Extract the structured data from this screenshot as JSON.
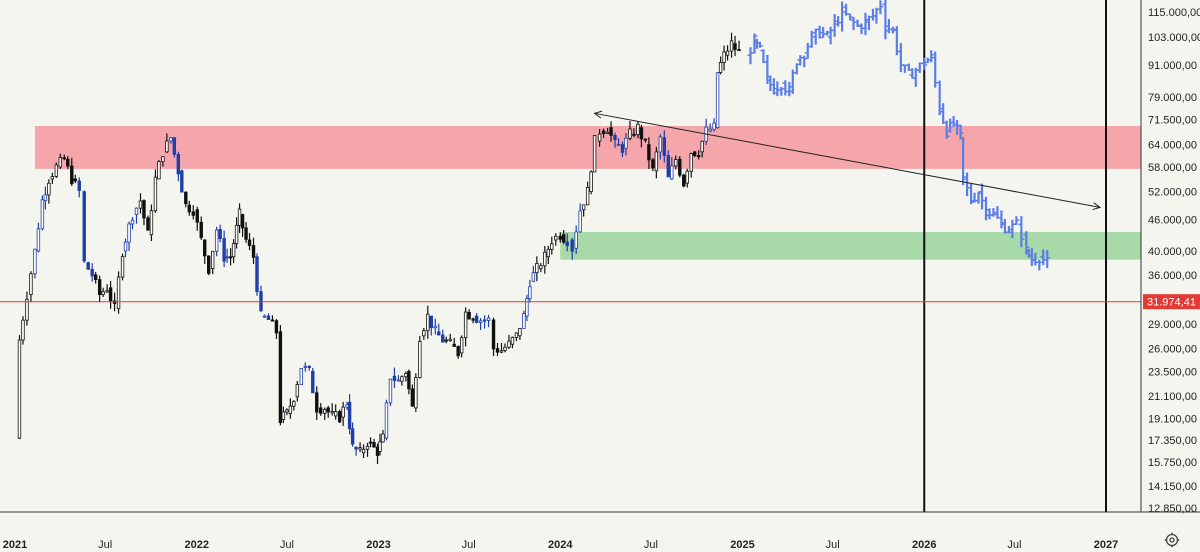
{
  "chart_data": {
    "type": "candlestick",
    "title": "",
    "y_scale": "log",
    "ylim": [
      12850,
      118000
    ],
    "y_ticks": [
      "115.000,00",
      "103.000,00",
      "91.000,00",
      "79.000,00",
      "71.500,00",
      "64.000,00",
      "58.000,00",
      "52.000,00",
      "46.000,00",
      "40.000,00",
      "36.000,00",
      "29.000,00",
      "26.000,00",
      "23.500,00",
      "21.100,00",
      "19.100,00",
      "17.350,00",
      "15.750,00",
      "14.150,00",
      "12.850,00"
    ],
    "x_ticks": [
      "2021",
      "Jul",
      "2022",
      "Jul",
      "2023",
      "Jul",
      "2024",
      "Jul",
      "2025",
      "Jul",
      "2026",
      "Jul",
      "2027"
    ],
    "x_range": [
      "2021-01-01",
      "2027-01-20"
    ],
    "price_label": {
      "value": 31974.41,
      "text": "31.974,41",
      "color": "#e53935"
    },
    "zones": [
      {
        "name": "resistance",
        "from": 57500,
        "to": 69500,
        "start": "2021-02-10",
        "color": "#f4a6aa"
      },
      {
        "name": "support",
        "from": 38500,
        "to": 43500,
        "start": "2024-01-01",
        "color": "#a8d9a8"
      }
    ],
    "trendline": {
      "start": [
        "2024-03-10",
        73500
      ],
      "end": [
        "2026-12-20",
        48500
      ]
    },
    "vertical_lines": [
      "2026-01-01",
      "2027-01-01"
    ],
    "historical_candle_color": "#111111",
    "historical_candle_alt_color": "#1e3ea8",
    "projection_color": "#5b7ee5",
    "historical_points": [
      [
        "2021-01-01",
        17500
      ],
      [
        "2021-01-10",
        27000
      ],
      [
        "2021-01-25",
        33000
      ],
      [
        "2021-02-10",
        40000
      ],
      [
        "2021-02-25",
        50000
      ],
      [
        "2021-03-10",
        55000
      ],
      [
        "2021-03-25",
        58000
      ],
      [
        "2021-04-10",
        60000
      ],
      [
        "2021-04-25",
        55000
      ],
      [
        "2021-05-10",
        52000
      ],
      [
        "2021-05-20",
        38000
      ],
      [
        "2021-06-05",
        36000
      ],
      [
        "2021-06-20",
        33000
      ],
      [
        "2021-07-05",
        34000
      ],
      [
        "2021-07-20",
        31000
      ],
      [
        "2021-08-05",
        40000
      ],
      [
        "2021-08-25",
        47000
      ],
      [
        "2021-09-10",
        50000
      ],
      [
        "2021-09-25",
        43000
      ],
      [
        "2021-10-10",
        55000
      ],
      [
        "2021-10-25",
        62000
      ],
      [
        "2021-11-10",
        66000
      ],
      [
        "2021-11-25",
        57000
      ],
      [
        "2021-12-10",
        49000
      ],
      [
        "2021-12-25",
        48000
      ],
      [
        "2022-01-10",
        42000
      ],
      [
        "2022-01-25",
        37000
      ],
      [
        "2022-02-10",
        44000
      ],
      [
        "2022-02-25",
        39000
      ],
      [
        "2022-03-10",
        39000
      ],
      [
        "2022-03-28",
        47000
      ],
      [
        "2022-04-10",
        42000
      ],
      [
        "2022-04-25",
        39000
      ],
      [
        "2022-05-10",
        30000
      ],
      [
        "2022-05-25",
        29500
      ],
      [
        "2022-06-10",
        28000
      ],
      [
        "2022-06-18",
        19000
      ],
      [
        "2022-07-01",
        19500
      ],
      [
        "2022-07-15",
        21000
      ],
      [
        "2022-07-30",
        24000
      ],
      [
        "2022-08-15",
        23500
      ],
      [
        "2022-08-30",
        20000
      ],
      [
        "2022-09-15",
        20000
      ],
      [
        "2022-09-30",
        19300
      ],
      [
        "2022-10-15",
        19200
      ],
      [
        "2022-10-30",
        20500
      ],
      [
        "2022-11-10",
        16800
      ],
      [
        "2022-11-25",
        16400
      ],
      [
        "2022-12-10",
        17200
      ],
      [
        "2022-12-30",
        16500
      ],
      [
        "2023-01-10",
        17500
      ],
      [
        "2023-01-25",
        23000
      ],
      [
        "2023-02-10",
        22500
      ],
      [
        "2023-02-25",
        23500
      ],
      [
        "2023-03-10",
        20000
      ],
      [
        "2023-03-25",
        27500
      ],
      [
        "2023-04-10",
        30000
      ],
      [
        "2023-04-25",
        28000
      ],
      [
        "2023-05-10",
        27000
      ],
      [
        "2023-05-25",
        26500
      ],
      [
        "2023-06-10",
        25500
      ],
      [
        "2023-06-25",
        30500
      ],
      [
        "2023-07-10",
        30000
      ],
      [
        "2023-07-25",
        29500
      ],
      [
        "2023-08-10",
        29500
      ],
      [
        "2023-08-20",
        26000
      ],
      [
        "2023-09-05",
        25800
      ],
      [
        "2023-09-20",
        26500
      ],
      [
        "2023-10-05",
        27500
      ],
      [
        "2023-10-20",
        30000
      ],
      [
        "2023-11-01",
        35000
      ],
      [
        "2023-11-15",
        37000
      ],
      [
        "2023-12-01",
        39000
      ],
      [
        "2023-12-15",
        42000
      ],
      [
        "2024-01-01",
        43000
      ],
      [
        "2024-01-15",
        42000
      ],
      [
        "2024-01-25",
        40500
      ],
      [
        "2024-02-10",
        48000
      ],
      [
        "2024-02-25",
        52000
      ],
      [
        "2024-03-10",
        65000
      ],
      [
        "2024-03-20",
        68000
      ],
      [
        "2024-04-05",
        69000
      ],
      [
        "2024-04-20",
        64000
      ],
      [
        "2024-05-05",
        63000
      ],
      [
        "2024-05-20",
        67000
      ],
      [
        "2024-06-05",
        69000
      ],
      [
        "2024-06-20",
        64000
      ],
      [
        "2024-07-05",
        57000
      ],
      [
        "2024-07-20",
        66000
      ],
      [
        "2024-08-05",
        55000
      ],
      [
        "2024-08-20",
        60000
      ],
      [
        "2024-09-05",
        54000
      ],
      [
        "2024-09-20",
        62000
      ],
      [
        "2024-10-05",
        62000
      ],
      [
        "2024-10-20",
        68000
      ],
      [
        "2024-11-05",
        69000
      ],
      [
        "2024-11-12",
        88000
      ],
      [
        "2024-11-25",
        95000
      ],
      [
        "2024-12-10",
        100000
      ],
      [
        "2024-12-25",
        96000
      ]
    ],
    "projection_points": [
      [
        "2025-01-10",
        95000
      ],
      [
        "2025-01-25",
        101000
      ],
      [
        "2025-02-05",
        97000
      ],
      [
        "2025-02-20",
        85000
      ],
      [
        "2025-03-05",
        82000
      ],
      [
        "2025-03-20",
        84000
      ],
      [
        "2025-04-05",
        81000
      ],
      [
        "2025-04-20",
        93000
      ],
      [
        "2025-05-05",
        96000
      ],
      [
        "2025-05-20",
        103000
      ],
      [
        "2025-06-05",
        105000
      ],
      [
        "2025-06-20",
        103000
      ],
      [
        "2025-07-05",
        109000
      ],
      [
        "2025-07-20",
        115000
      ],
      [
        "2025-08-05",
        111000
      ],
      [
        "2025-08-20",
        108000
      ],
      [
        "2025-09-05",
        110000
      ],
      [
        "2025-09-20",
        113000
      ],
      [
        "2025-10-05",
        119000
      ],
      [
        "2025-10-15",
        108000
      ],
      [
        "2025-10-30",
        106000
      ],
      [
        "2025-11-15",
        91000
      ],
      [
        "2025-12-01",
        87000
      ],
      [
        "2025-12-15",
        89000
      ],
      [
        "2026-01-01",
        92000
      ],
      [
        "2026-01-15",
        94000
      ],
      [
        "2026-02-01",
        75000
      ],
      [
        "2026-02-15",
        68000
      ],
      [
        "2026-03-01",
        70000
      ],
      [
        "2026-03-15",
        66000
      ],
      [
        "2026-03-20",
        55000
      ],
      [
        "2026-04-05",
        50000
      ],
      [
        "2026-04-20",
        52000
      ],
      [
        "2026-05-05",
        48000
      ],
      [
        "2026-05-20",
        47000
      ],
      [
        "2026-06-05",
        45000
      ],
      [
        "2026-06-20",
        44000
      ],
      [
        "2026-07-05",
        45000
      ],
      [
        "2026-07-15",
        43000
      ],
      [
        "2026-07-25",
        40000
      ],
      [
        "2026-08-05",
        38500
      ],
      [
        "2026-08-20",
        39000
      ],
      [
        "2026-09-05",
        38000
      ]
    ]
  }
}
